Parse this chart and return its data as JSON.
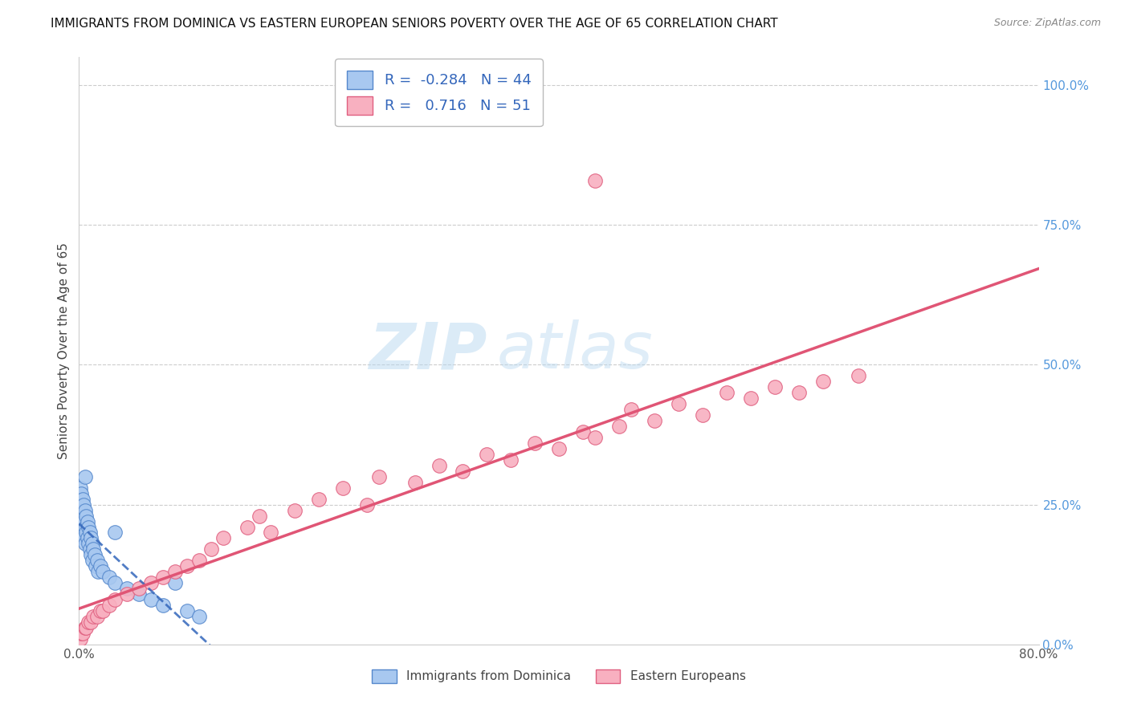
{
  "title": "IMMIGRANTS FROM DOMINICA VS EASTERN EUROPEAN SENIORS POVERTY OVER THE AGE OF 65 CORRELATION CHART",
  "source": "Source: ZipAtlas.com",
  "ylabel": "Seniors Poverty Over the Age of 65",
  "xlim": [
    0.0,
    0.8
  ],
  "ylim": [
    0.0,
    1.05
  ],
  "r_dominica": -0.284,
  "n_dominica": 44,
  "r_eastern": 0.716,
  "n_eastern": 51,
  "dominica_color": "#a8c8f0",
  "dominica_edge_color": "#5588cc",
  "eastern_color": "#f8b0c0",
  "eastern_edge_color": "#e06080",
  "dominica_line_color": "#3366bb",
  "eastern_line_color": "#e05575",
  "legend_entries": [
    "Immigrants from Dominica",
    "Eastern Europeans"
  ],
  "background_color": "#ffffff",
  "grid_color": "#cccccc",
  "right_tick_color": "#5599dd",
  "title_color": "#111111",
  "source_color": "#888888",
  "dom_x": [
    0.001,
    0.001,
    0.002,
    0.002,
    0.002,
    0.003,
    0.003,
    0.003,
    0.004,
    0.004,
    0.004,
    0.005,
    0.005,
    0.005,
    0.006,
    0.006,
    0.007,
    0.007,
    0.008,
    0.008,
    0.009,
    0.009,
    0.01,
    0.01,
    0.011,
    0.011,
    0.012,
    0.013,
    0.014,
    0.015,
    0.016,
    0.018,
    0.02,
    0.025,
    0.03,
    0.04,
    0.05,
    0.06,
    0.07,
    0.08,
    0.09,
    0.1,
    0.03,
    0.005
  ],
  "dom_y": [
    0.28,
    0.25,
    0.27,
    0.24,
    0.22,
    0.26,
    0.23,
    0.2,
    0.25,
    0.22,
    0.19,
    0.24,
    0.21,
    0.18,
    0.23,
    0.2,
    0.22,
    0.19,
    0.21,
    0.18,
    0.2,
    0.17,
    0.19,
    0.16,
    0.18,
    0.15,
    0.17,
    0.16,
    0.14,
    0.15,
    0.13,
    0.14,
    0.13,
    0.12,
    0.11,
    0.1,
    0.09,
    0.08,
    0.07,
    0.11,
    0.06,
    0.05,
    0.2,
    0.3
  ],
  "east_x": [
    0.001,
    0.002,
    0.003,
    0.005,
    0.006,
    0.008,
    0.01,
    0.012,
    0.015,
    0.018,
    0.02,
    0.025,
    0.03,
    0.04,
    0.05,
    0.06,
    0.07,
    0.08,
    0.09,
    0.1,
    0.11,
    0.12,
    0.14,
    0.15,
    0.16,
    0.18,
    0.2,
    0.22,
    0.24,
    0.25,
    0.28,
    0.3,
    0.32,
    0.34,
    0.36,
    0.38,
    0.4,
    0.42,
    0.43,
    0.45,
    0.46,
    0.48,
    0.5,
    0.52,
    0.54,
    0.56,
    0.58,
    0.6,
    0.62,
    0.65,
    0.43
  ],
  "east_y": [
    0.01,
    0.02,
    0.02,
    0.03,
    0.03,
    0.04,
    0.04,
    0.05,
    0.05,
    0.06,
    0.06,
    0.07,
    0.08,
    0.09,
    0.1,
    0.11,
    0.12,
    0.13,
    0.14,
    0.15,
    0.17,
    0.19,
    0.21,
    0.23,
    0.2,
    0.24,
    0.26,
    0.28,
    0.25,
    0.3,
    0.29,
    0.32,
    0.31,
    0.34,
    0.33,
    0.36,
    0.35,
    0.38,
    0.37,
    0.39,
    0.42,
    0.4,
    0.43,
    0.41,
    0.45,
    0.44,
    0.46,
    0.45,
    0.47,
    0.48,
    0.83
  ]
}
